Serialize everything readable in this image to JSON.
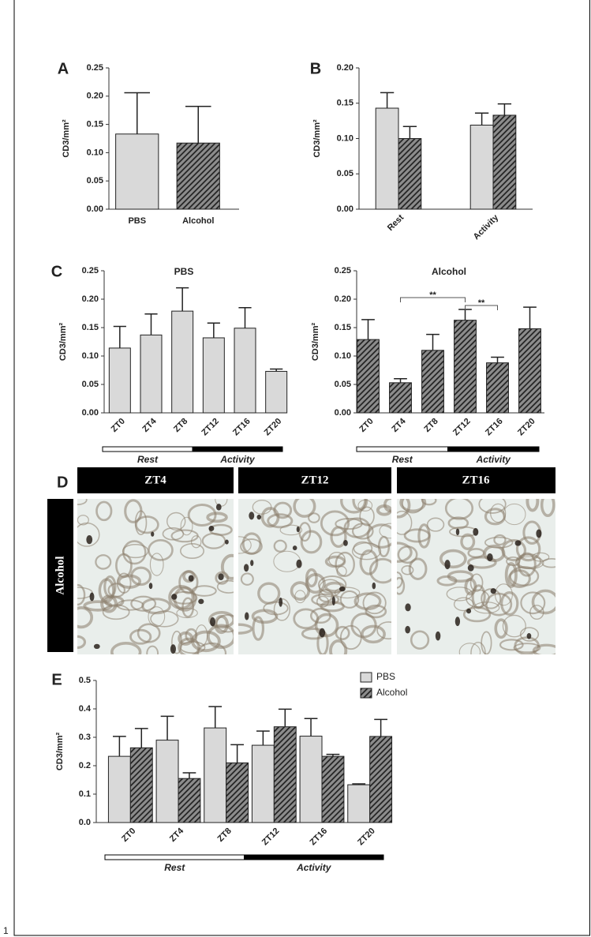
{
  "chart_data": [
    {
      "type": "bar",
      "panel": "A",
      "y_label": "CD3/mm²",
      "categories": [
        "PBS",
        "Alcohol"
      ],
      "values": [
        0.133,
        0.117
      ],
      "errors": [
        0.073,
        0.065
      ],
      "colors": [
        "#d9d9d9",
        "#8c8c8c"
      ],
      "hatched": [
        false,
        true
      ],
      "ylim": [
        0,
        0.25
      ],
      "yticks": [
        {
          "value": 0,
          "label": "0.00"
        },
        0.05,
        {
          "value": 0.1,
          "label": "0.10"
        },
        0.15,
        {
          "value": 0.2,
          "label": "0.20"
        },
        0.25
      ]
    },
    {
      "type": "bar",
      "panel": "B",
      "y_label": "CD3/mm²",
      "categories": [
        "Rest",
        "Activity"
      ],
      "series": [
        {
          "color": "#d9d9d9",
          "hatched": false,
          "values": [
            0.143,
            0.119
          ],
          "errors": [
            0.022,
            0.017
          ]
        },
        {
          "color": "#8c8c8c",
          "hatched": true,
          "values": [
            0.1,
            0.133
          ],
          "errors": [
            0.017,
            0.016
          ]
        }
      ],
      "ylim": [
        0,
        0.2
      ],
      "yticks": [
        {
          "value": 0,
          "label": "0.00"
        },
        0.05,
        {
          "value": 0.1,
          "label": "0.10"
        },
        0.15,
        {
          "value": 0.2,
          "label": "0.20"
        }
      ]
    },
    {
      "type": "bar",
      "panel": "C",
      "title": "PBS",
      "y_label": "CD3/mm²",
      "categories": [
        "ZT0",
        "ZT4",
        "ZT8",
        "ZT12",
        "ZT16",
        "ZT20"
      ],
      "values": [
        0.114,
        0.137,
        0.179,
        0.132,
        0.149,
        0.073
      ],
      "errors": [
        0.038,
        0.037,
        0.041,
        0.026,
        0.036,
        0.004
      ],
      "color": "#d9d9d9",
      "hatched": false,
      "phases": [
        "Rest",
        "Activity"
      ],
      "ylim": [
        0,
        0.25
      ],
      "yticks": [
        {
          "value": 0,
          "label": "0.00"
        },
        0.05,
        {
          "value": 0.1,
          "label": "0.10"
        },
        0.15,
        {
          "value": 0.2,
          "label": "0.20"
        },
        0.25
      ]
    },
    {
      "type": "bar",
      "title": "Alcohol",
      "y_label": "CD3/mm²",
      "categories": [
        "ZT0",
        "ZT4",
        "ZT8",
        "ZT12",
        "ZT16",
        "ZT20"
      ],
      "values": [
        0.129,
        0.053,
        0.11,
        0.163,
        0.088,
        0.148
      ],
      "errors": [
        0.035,
        0.007,
        0.028,
        0.019,
        0.01,
        0.038
      ],
      "color": "#8c8c8c",
      "hatched": true,
      "phases": [
        "Rest",
        "Activity"
      ],
      "annotations": [
        "**",
        "**"
      ],
      "ylim": [
        0,
        0.25
      ],
      "yticks": [
        {
          "value": 0,
          "label": "0.00"
        },
        0.05,
        {
          "value": 0.1,
          "label": "0.10"
        },
        0.15,
        {
          "value": 0.2,
          "label": "0.20"
        },
        0.25
      ]
    },
    {
      "type": "bar",
      "panel": "E",
      "y_label": "CD3/mm²",
      "categories": [
        "ZT0",
        "ZT4",
        "ZT8",
        "ZT12",
        "ZT16",
        "ZT20"
      ],
      "series": [
        {
          "name": "PBS",
          "color": "#d9d9d9",
          "hatched": false,
          "values": [
            0.233,
            0.29,
            0.333,
            0.272,
            0.304,
            0.133
          ],
          "errors": [
            0.07,
            0.084,
            0.075,
            0.05,
            0.062,
            0.003
          ]
        },
        {
          "name": "Alcohol",
          "color": "#8c8c8c",
          "hatched": true,
          "values": [
            0.263,
            0.155,
            0.21,
            0.337,
            0.233,
            0.303
          ],
          "errors": [
            0.068,
            0.02,
            0.064,
            0.062,
            0.007,
            0.06
          ]
        }
      ],
      "phases": [
        "Rest",
        "Activity"
      ],
      "legend": "top-right",
      "ylim": [
        0,
        0.5
      ],
      "yticks": [
        {
          "value": 0,
          "label": "0.0"
        },
        0.1,
        0.2,
        0.3,
        0.4,
        0.5
      ]
    }
  ],
  "image_panel": {
    "panel": "D",
    "row_label": "Alcohol",
    "columns": [
      "ZT4",
      "ZT12",
      "ZT16"
    ]
  },
  "page_number": "1"
}
